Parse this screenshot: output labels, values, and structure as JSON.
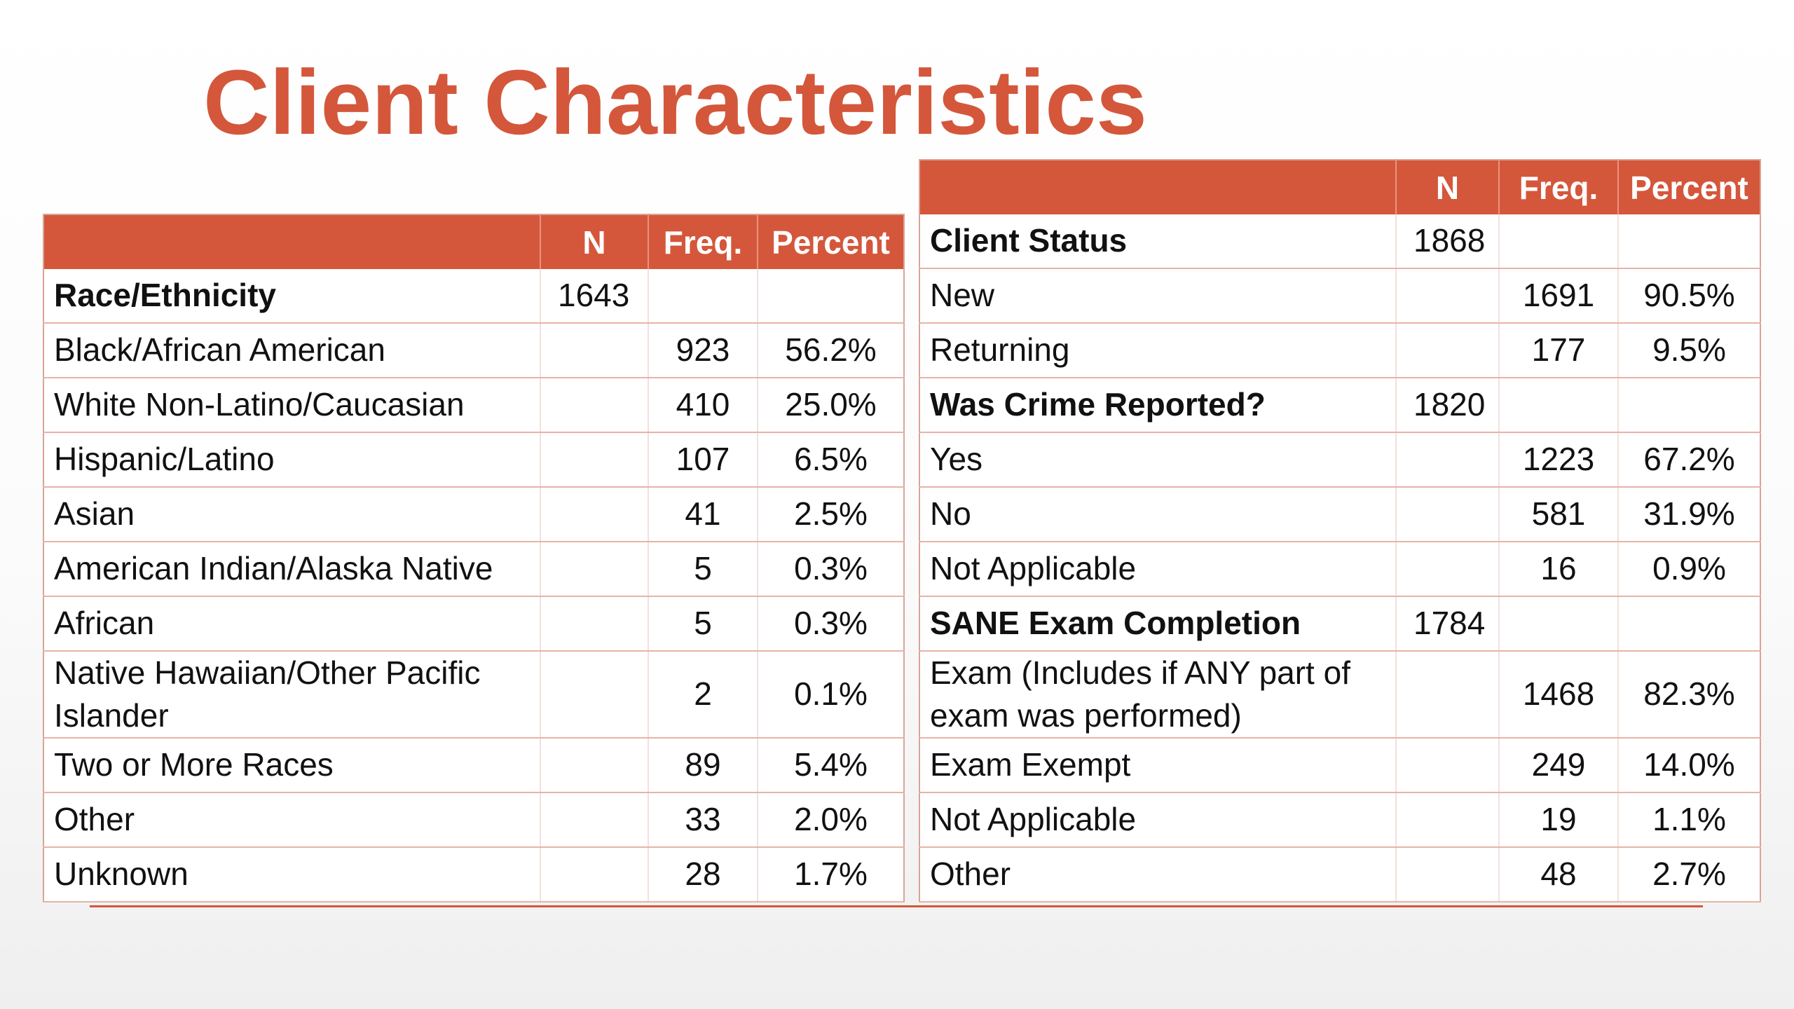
{
  "title": "Client Characteristics",
  "colors": {
    "accent": "#d4573b",
    "header_text": "#ffffff",
    "row_border": "#e6b3a7"
  },
  "left_table": {
    "headers": [
      "",
      "N",
      "Freq.",
      "Percent"
    ],
    "rows": [
      {
        "label": "Race/Ethnicity",
        "n": "1643",
        "freq": "",
        "percent": "",
        "section": true
      },
      {
        "label": "Black/African American",
        "n": "",
        "freq": "923",
        "percent": "56.2%"
      },
      {
        "label": "White Non-Latino/Caucasian",
        "n": "",
        "freq": "410",
        "percent": "25.0%"
      },
      {
        "label": "Hispanic/Latino",
        "n": "",
        "freq": "107",
        "percent": "6.5%"
      },
      {
        "label": "Asian",
        "n": "",
        "freq": "41",
        "percent": "2.5%"
      },
      {
        "label": "American Indian/Alaska Native",
        "n": "",
        "freq": "5",
        "percent": "0.3%"
      },
      {
        "label": "African",
        "n": "",
        "freq": "5",
        "percent": "0.3%"
      },
      {
        "label": "Native Hawaiian/Other Pacific Islander",
        "n": "",
        "freq": "2",
        "percent": "0.1%",
        "tall": true
      },
      {
        "label": "Two or More Races",
        "n": "",
        "freq": "89",
        "percent": "5.4%"
      },
      {
        "label": "Other",
        "n": "",
        "freq": "33",
        "percent": "2.0%"
      },
      {
        "label": "Unknown",
        "n": "",
        "freq": "28",
        "percent": "1.7%"
      }
    ]
  },
  "right_table": {
    "headers": [
      "",
      "N",
      "Freq.",
      "Percent"
    ],
    "rows": [
      {
        "label": "Client Status",
        "n": "1868",
        "freq": "",
        "percent": "",
        "section": true
      },
      {
        "label": "New",
        "n": "",
        "freq": "1691",
        "percent": "90.5%"
      },
      {
        "label": "Returning",
        "n": "",
        "freq": "177",
        "percent": "9.5%"
      },
      {
        "label": "Was Crime Reported?",
        "n": "1820",
        "freq": "",
        "percent": "",
        "section": true
      },
      {
        "label": "Yes",
        "n": "",
        "freq": "1223",
        "percent": "67.2%"
      },
      {
        "label": "No",
        "n": "",
        "freq": "581",
        "percent": "31.9%"
      },
      {
        "label": "Not Applicable",
        "n": "",
        "freq": "16",
        "percent": "0.9%"
      },
      {
        "label": "SANE Exam Completion",
        "n": "1784",
        "freq": "",
        "percent": "",
        "section": true
      },
      {
        "label": "Exam (Includes if ANY part of exam was performed)",
        "n": "",
        "freq": "1468",
        "percent": "82.3%",
        "tall": true
      },
      {
        "label": "Exam Exempt",
        "n": "",
        "freq": "249",
        "percent": "14.0%"
      },
      {
        "label": "Not Applicable",
        "n": "",
        "freq": "19",
        "percent": "1.1%"
      },
      {
        "label": "Other",
        "n": "",
        "freq": "48",
        "percent": "2.7%"
      }
    ]
  }
}
